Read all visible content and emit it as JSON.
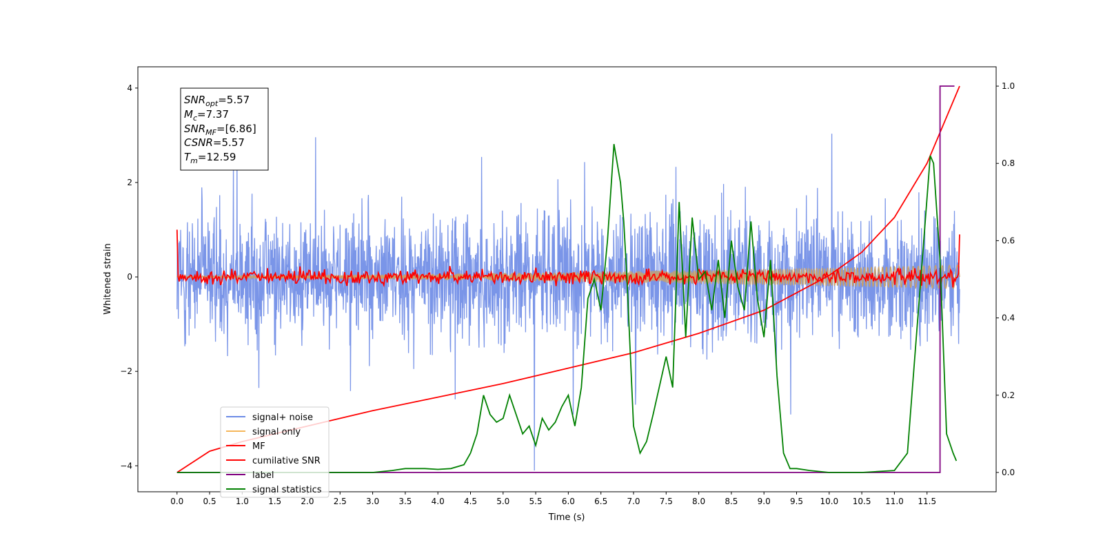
{
  "chart_data": {
    "type": "line",
    "xlabel": "Time (s)",
    "ylabel": "Whitened strain",
    "xlim": [
      -0.6,
      12.56
    ],
    "ylim_left": [
      -4.55,
      4.45
    ],
    "ylim_right": [
      -0.05,
      1.05
    ],
    "x_ticks": [
      "0.0",
      "0.5",
      "1.0",
      "1.5",
      "2.0",
      "2.5",
      "3.0",
      "3.5",
      "4.0",
      "4.5",
      "5.0",
      "5.5",
      "6.0",
      "6.5",
      "7.0",
      "7.5",
      "8.0",
      "8.5",
      "9.0",
      "9.5",
      "10.0",
      "10.5",
      "11.0",
      "11.5"
    ],
    "y_ticks_left": [
      "4",
      "2",
      "0",
      "−2",
      "−4"
    ],
    "y_ticks_right": [
      "0.0",
      "0.2",
      "0.4",
      "0.6",
      "0.8",
      "1.0"
    ],
    "annotation": {
      "snr_opt": "=5.57",
      "mc": "=7.37",
      "snr_mf": "=[6.86]",
      "csnr": "=5.57",
      "tm": "=12.59"
    },
    "legend": {
      "placement": "lower-left",
      "entries": [
        {
          "label": "signal+ noise",
          "color": "#6b8ae6"
        },
        {
          "label": "signal only",
          "color": "#f5b65a"
        },
        {
          "label": "MF",
          "color": "#ff0000"
        },
        {
          "label": "cumilative SNR",
          "color": "#ff0000"
        },
        {
          "label": "label",
          "color": "#800080"
        },
        {
          "label": "signal statistics",
          "color": "#008000"
        }
      ]
    },
    "series": [
      {
        "label": "signal+ noise",
        "axis": "left",
        "description": "noise band, approx ±1.5 with spikes to ±4",
        "x_range": [
          0,
          12.0
        ]
      },
      {
        "label": "signal only",
        "axis": "left",
        "amplitude_start": 0.02,
        "amplitude_end": 0.25,
        "x_range": [
          0,
          12.0
        ]
      },
      {
        "label": "MF",
        "axis": "left",
        "x_range": [
          0,
          12.0
        ]
      },
      {
        "label": "cumilative SNR",
        "axis": "right",
        "x": [
          0,
          0.5,
          1,
          2,
          3,
          4,
          5,
          6,
          7,
          8,
          9,
          10,
          10.5,
          11,
          11.5,
          12.0
        ],
        "y": [
          0.0,
          0.055,
          0.08,
          0.12,
          0.16,
          0.195,
          0.23,
          0.27,
          0.31,
          0.36,
          0.42,
          0.51,
          0.57,
          0.66,
          0.8,
          1.0
        ]
      },
      {
        "label": "label",
        "axis": "right",
        "x": [
          0,
          11.7,
          11.7,
          11.92
        ],
        "y": [
          0,
          0,
          1,
          1
        ]
      },
      {
        "label": "signal statistics",
        "axis": "right",
        "x": [
          0,
          0.5,
          1,
          1.5,
          2,
          2.5,
          3,
          3.3,
          3.5,
          3.8,
          4,
          4.2,
          4.4,
          4.5,
          4.6,
          4.7,
          4.8,
          4.9,
          5.0,
          5.1,
          5.2,
          5.3,
          5.4,
          5.5,
          5.6,
          5.7,
          5.8,
          5.9,
          6.0,
          6.1,
          6.2,
          6.3,
          6.4,
          6.5,
          6.6,
          6.7,
          6.8,
          6.85,
          6.9,
          7.0,
          7.1,
          7.2,
          7.3,
          7.5,
          7.6,
          7.7,
          7.8,
          7.9,
          8.0,
          8.1,
          8.2,
          8.3,
          8.4,
          8.5,
          8.6,
          8.7,
          8.8,
          8.9,
          9.0,
          9.1,
          9.2,
          9.3,
          9.4,
          9.5,
          9.7,
          10,
          10.5,
          11,
          11.2,
          11.35,
          11.45,
          11.55,
          11.6,
          11.7,
          11.8,
          11.9,
          11.95
        ],
        "y": [
          0.0,
          0.0,
          0.0,
          0.0,
          0.0,
          0.0,
          0.0,
          0.005,
          0.01,
          0.01,
          0.008,
          0.01,
          0.02,
          0.05,
          0.1,
          0.2,
          0.15,
          0.13,
          0.14,
          0.2,
          0.15,
          0.1,
          0.12,
          0.07,
          0.14,
          0.11,
          0.13,
          0.17,
          0.2,
          0.12,
          0.22,
          0.45,
          0.5,
          0.42,
          0.6,
          0.85,
          0.75,
          0.65,
          0.5,
          0.12,
          0.05,
          0.08,
          0.15,
          0.3,
          0.22,
          0.7,
          0.35,
          0.66,
          0.5,
          0.52,
          0.42,
          0.55,
          0.4,
          0.6,
          0.48,
          0.42,
          0.65,
          0.45,
          0.35,
          0.55,
          0.25,
          0.05,
          0.01,
          0.01,
          0.005,
          0.0,
          0.0,
          0.005,
          0.05,
          0.38,
          0.6,
          0.82,
          0.8,
          0.55,
          0.1,
          0.05,
          0.03
        ]
      }
    ]
  }
}
